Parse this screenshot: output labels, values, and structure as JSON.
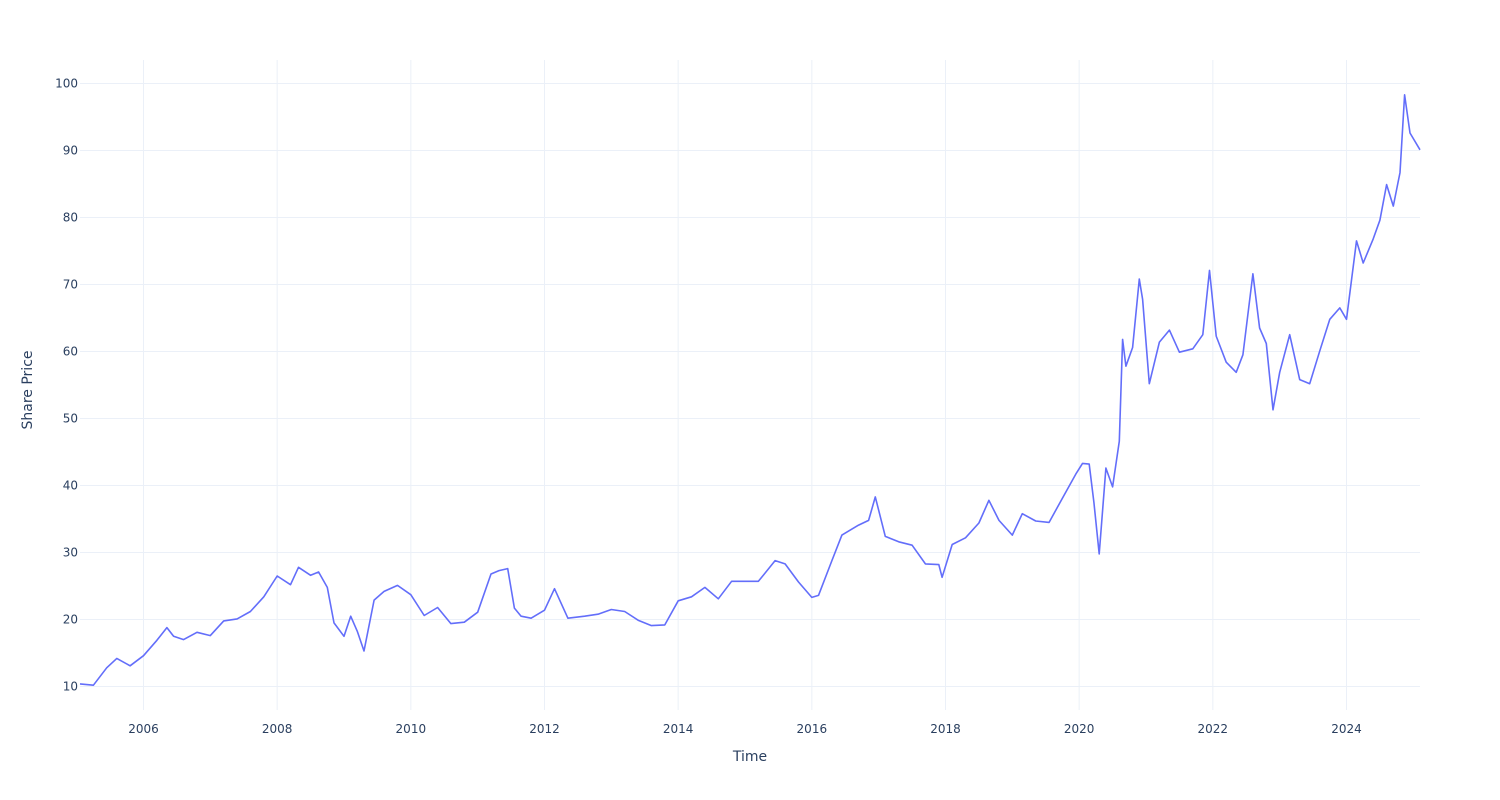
{
  "chart_data": {
    "type": "line",
    "title": "",
    "xlabel": "Time",
    "ylabel": "Share Price",
    "xlim": [
      2005.05,
      2025.1
    ],
    "ylim": [
      6.5,
      103.5
    ],
    "x_ticks": [
      2006,
      2008,
      2010,
      2012,
      2014,
      2016,
      2018,
      2020,
      2022,
      2024
    ],
    "y_ticks": [
      10,
      20,
      30,
      40,
      50,
      60,
      70,
      80,
      90,
      100
    ],
    "grid": true,
    "legend": "none",
    "line_color": "#636efa",
    "series": [
      {
        "x": [
          2005.05,
          2005.25,
          2005.45,
          2005.6,
          2005.8,
          2006.0,
          2006.2,
          2006.35,
          2006.45,
          2006.6,
          2006.8,
          2007.0,
          2007.2,
          2007.4,
          2007.6,
          2007.8,
          2008.0,
          2008.2,
          2008.32,
          2008.5,
          2008.62,
          2008.75,
          2008.85,
          2009.0,
          2009.1,
          2009.2,
          2009.3,
          2009.45,
          2009.6,
          2009.8,
          2010.0,
          2010.2,
          2010.4,
          2010.6,
          2010.8,
          2011.0,
          2011.2,
          2011.32,
          2011.45,
          2011.55,
          2011.65,
          2011.8,
          2012.0,
          2012.15,
          2012.35,
          2012.6,
          2012.8,
          2013.0,
          2013.2,
          2013.4,
          2013.6,
          2013.8,
          2014.0,
          2014.2,
          2014.4,
          2014.6,
          2014.8,
          2015.0,
          2015.2,
          2015.45,
          2015.6,
          2015.8,
          2016.0,
          2016.1,
          2016.3,
          2016.45,
          2016.6,
          2016.7,
          2016.85,
          2016.95,
          2017.1,
          2017.3,
          2017.5,
          2017.7,
          2017.9,
          2017.95,
          2018.1,
          2018.3,
          2018.5,
          2018.65,
          2018.8,
          2019.0,
          2019.15,
          2019.35,
          2019.55,
          2019.75,
          2019.95,
          2020.05,
          2020.15,
          2020.22,
          2020.3,
          2020.4,
          2020.5,
          2020.6,
          2020.65,
          2020.7,
          2020.8,
          2020.9,
          2020.95,
          2021.05,
          2021.2,
          2021.35,
          2021.5,
          2021.7,
          2021.85,
          2021.95,
          2022.05,
          2022.2,
          2022.35,
          2022.45,
          2022.6,
          2022.7,
          2022.8,
          2022.9,
          2023.0,
          2023.15,
          2023.3,
          2023.45,
          2023.6,
          2023.75,
          2023.9,
          2024.0,
          2024.15,
          2024.25,
          2024.4,
          2024.5,
          2024.6,
          2024.7,
          2024.8,
          2024.87,
          2024.95,
          2025.1
        ],
        "y": [
          10.4,
          10.2,
          12.8,
          14.2,
          13.1,
          14.6,
          16.9,
          18.8,
          17.5,
          17.0,
          18.1,
          17.6,
          19.8,
          20.1,
          21.2,
          23.4,
          26.5,
          25.2,
          27.8,
          26.6,
          27.1,
          24.8,
          19.5,
          17.5,
          20.5,
          18.2,
          15.3,
          22.9,
          24.2,
          25.1,
          23.7,
          20.6,
          21.8,
          19.4,
          19.6,
          21.1,
          26.8,
          27.3,
          27.6,
          21.7,
          20.5,
          20.2,
          21.4,
          24.6,
          20.2,
          20.5,
          20.8,
          21.5,
          21.2,
          19.9,
          19.1,
          19.2,
          22.8,
          23.4,
          24.8,
          23.1,
          25.7,
          25.7,
          25.7,
          28.8,
          28.3,
          25.6,
          23.3,
          23.6,
          28.8,
          32.6,
          33.5,
          34.1,
          34.8,
          38.3,
          32.4,
          31.6,
          31.1,
          28.3,
          28.2,
          26.3,
          31.2,
          32.2,
          34.4,
          37.8,
          34.8,
          32.6,
          35.8,
          34.7,
          34.5,
          38.1,
          41.7,
          43.3,
          43.2,
          37.5,
          29.8,
          42.6,
          39.8,
          46.6,
          61.8,
          57.8,
          60.6,
          70.8,
          67.8,
          55.2,
          61.4,
          63.2,
          59.9,
          60.4,
          62.5,
          72.1,
          62.3,
          58.4,
          56.9,
          59.5,
          71.6,
          63.5,
          61.2,
          51.3,
          56.9,
          62.5,
          55.8,
          55.2,
          60.1,
          64.8,
          66.5,
          64.8,
          76.5,
          73.2,
          76.8,
          79.6,
          84.9,
          81.7,
          86.7,
          98.3,
          92.6,
          90.1
        ]
      }
    ]
  }
}
